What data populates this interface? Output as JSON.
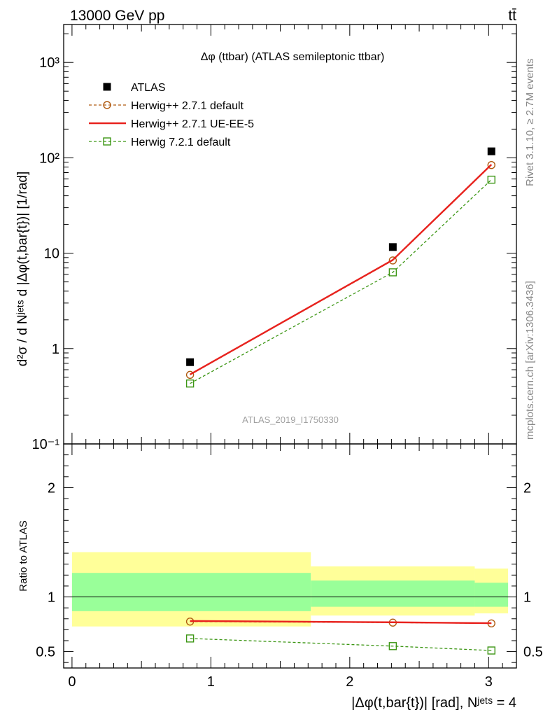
{
  "header": {
    "energy_label": "13000 GeV pp",
    "process_label": "tt̄"
  },
  "side_labels": {
    "rivet": "Rivet 3.1.10, ≥ 2.7M events",
    "mcplots": "mcplots.cern.ch [arXiv:1306.3436]"
  },
  "chart_data": [
    {
      "type": "line",
      "panel": "main",
      "title": "Δφ (ttbar) (ATLAS semileptonic ttbar)",
      "watermark": "ATLAS_2019_I1750330",
      "ylabel": "d²σ / d Nʲᵉᵗˢ d |Δφ(t,bar{t})| [1/rad]",
      "yscale": "log",
      "ylim": [
        0.1,
        2500
      ],
      "xlim": [
        -0.06,
        3.2
      ],
      "y_ticks": [
        {
          "value": 0.1,
          "label": "10⁻¹"
        },
        {
          "value": 1,
          "label": "1"
        },
        {
          "value": 10,
          "label": "10"
        },
        {
          "value": 100,
          "label": "10²"
        },
        {
          "value": 1000,
          "label": "10³"
        }
      ],
      "legend_position": "top-left",
      "x": [
        0.85,
        2.31,
        3.02
      ],
      "series": [
        {
          "name": "ATLAS",
          "values": [
            0.72,
            11.6,
            117
          ],
          "color": "#000000",
          "style": "marker-square"
        },
        {
          "name": "Herwig++ 2.7.1 default",
          "values": [
            0.53,
            8.4,
            84
          ],
          "color": "#b05a10",
          "style": "dashed-circle"
        },
        {
          "name": "Herwig++ 2.7.1 UE-EE-5",
          "values": [
            0.535,
            8.5,
            85
          ],
          "color": "#e8221e",
          "style": "solid"
        },
        {
          "name": "Herwig 7.2.1 default",
          "values": [
            0.43,
            6.3,
            59
          ],
          "color": "#3c9614",
          "style": "dashed-square"
        }
      ]
    },
    {
      "type": "line",
      "panel": "ratio",
      "ylabel": "Ratio to ATLAS",
      "xlabel": "|Δφ(t,bar{t})| [rad], Nʲᵉᵗˢ = 4",
      "ylim": [
        0.35,
        2.4
      ],
      "xlim": [
        -0.06,
        3.2
      ],
      "x_ticks": [
        0,
        1,
        2,
        3
      ],
      "y_ticks": [
        0.5,
        1,
        2
      ],
      "bands": [
        {
          "x_range": [
            0,
            1.72
          ],
          "yellow": [
            0.73,
            1.41
          ],
          "green": [
            0.87,
            1.22
          ]
        },
        {
          "x_range": [
            1.72,
            2.9
          ],
          "yellow": [
            0.83,
            1.28
          ],
          "green": [
            0.91,
            1.15
          ]
        },
        {
          "x_range": [
            2.9,
            3.14
          ],
          "yellow": [
            0.85,
            1.26
          ],
          "green": [
            0.91,
            1.13
          ]
        }
      ],
      "x": [
        0.85,
        2.31,
        3.02
      ],
      "series": [
        {
          "name": "Herwig++ 2.7.1 default",
          "values": [
            0.775,
            0.765,
            0.758
          ],
          "color": "#b05a10",
          "style": "dashed-circle"
        },
        {
          "name": "Herwig++ 2.7.1 UE-EE-5",
          "values": [
            0.78,
            0.768,
            0.76
          ],
          "color": "#e8221e",
          "style": "solid"
        },
        {
          "name": "Herwig 7.2.1 default",
          "values": [
            0.62,
            0.55,
            0.51
          ],
          "color": "#3c9614",
          "style": "dashed-square"
        }
      ]
    }
  ]
}
